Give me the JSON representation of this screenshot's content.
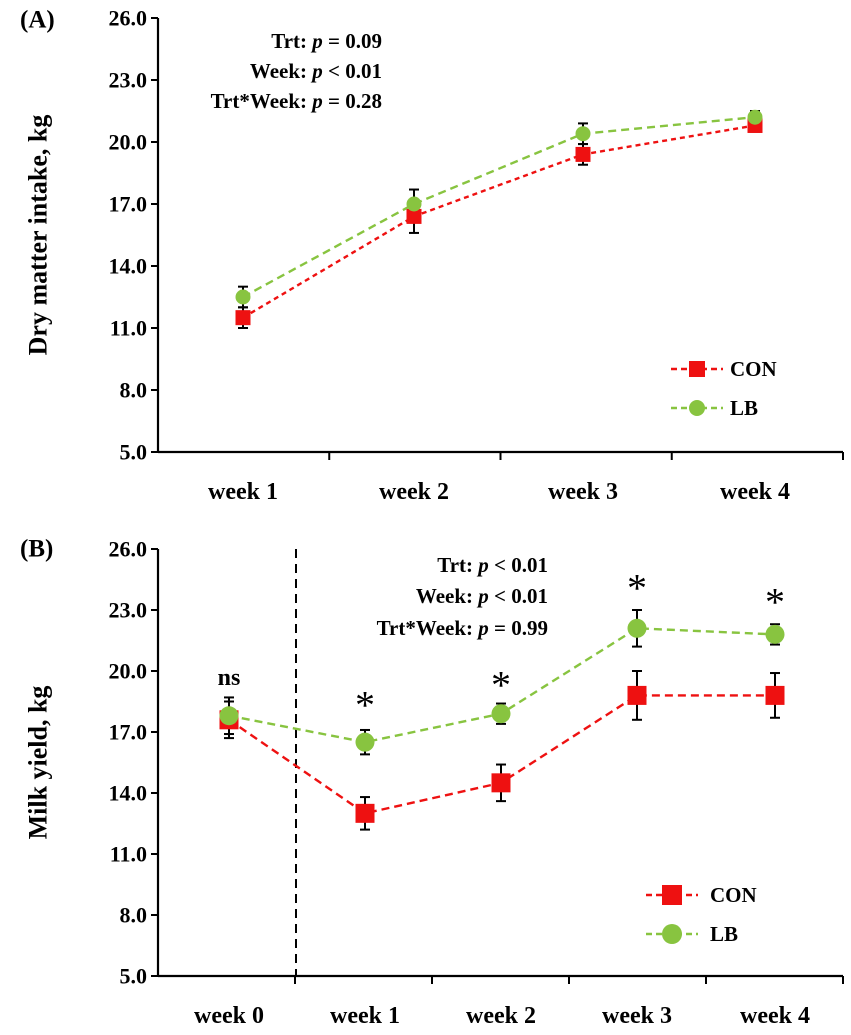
{
  "chart_data": [
    {
      "type": "line",
      "panel_label": "(A)",
      "ylabel": "Dry matter intake, kg",
      "ylim": [
        5.0,
        26.0
      ],
      "yticks": [
        "5.0",
        "8.0",
        "11.0",
        "14.0",
        "17.0",
        "20.0",
        "23.0",
        "26.0"
      ],
      "categories": [
        "week 1",
        "week 2",
        "week 3",
        "week 4"
      ],
      "stats": [
        {
          "label": "Trt: ",
          "p": "p",
          "rest": " = 0.09"
        },
        {
          "label": "Week: ",
          "p": "p",
          "rest": " < 0.01"
        },
        {
          "label": "Trt*Week: ",
          "p": "p",
          "rest": " = 0.28"
        }
      ],
      "series": [
        {
          "name": "CON",
          "color": "#ee1111",
          "marker": "square",
          "values": [
            11.5,
            16.4,
            19.4,
            20.8
          ],
          "errors": [
            0.5,
            0.8,
            0.5,
            0.3
          ]
        },
        {
          "name": "LB",
          "color": "#88c440",
          "marker": "circle",
          "values": [
            12.5,
            17.0,
            20.4,
            21.2
          ],
          "errors": [
            0.5,
            0.7,
            0.5,
            0.3
          ]
        }
      ],
      "annotations": []
    },
    {
      "type": "line",
      "panel_label": "(B)",
      "ylabel": "Milk yield, kg",
      "ylim": [
        5.0,
        26.0
      ],
      "yticks": [
        "5.0",
        "8.0",
        "11.0",
        "14.0",
        "17.0",
        "20.0",
        "23.0",
        "26.0"
      ],
      "categories": [
        "week 0",
        "week 1",
        "week 2",
        "week 3",
        "week 4"
      ],
      "stats": [
        {
          "label": "Trt: ",
          "p": "p",
          "rest": " < 0.01"
        },
        {
          "label": "Week: ",
          "p": "p",
          "rest": " < 0.01"
        },
        {
          "label": "Trt*Week: ",
          "p": "p",
          "rest": " = 0.99"
        }
      ],
      "series": [
        {
          "name": "CON",
          "color": "#ee1111",
          "marker": "square",
          "values": [
            17.6,
            13.0,
            14.5,
            18.8,
            18.8
          ],
          "errors": [
            0.9,
            0.8,
            0.9,
            1.2,
            1.1
          ]
        },
        {
          "name": "LB",
          "color": "#88c440",
          "marker": "circle",
          "values": [
            17.8,
            16.5,
            17.9,
            22.1,
            21.8
          ],
          "errors": [
            0.9,
            0.6,
            0.5,
            0.9,
            0.5
          ]
        }
      ],
      "annotations": [
        "ns",
        "*",
        "*",
        "*",
        "*"
      ],
      "divider_after": "week 0"
    }
  ]
}
